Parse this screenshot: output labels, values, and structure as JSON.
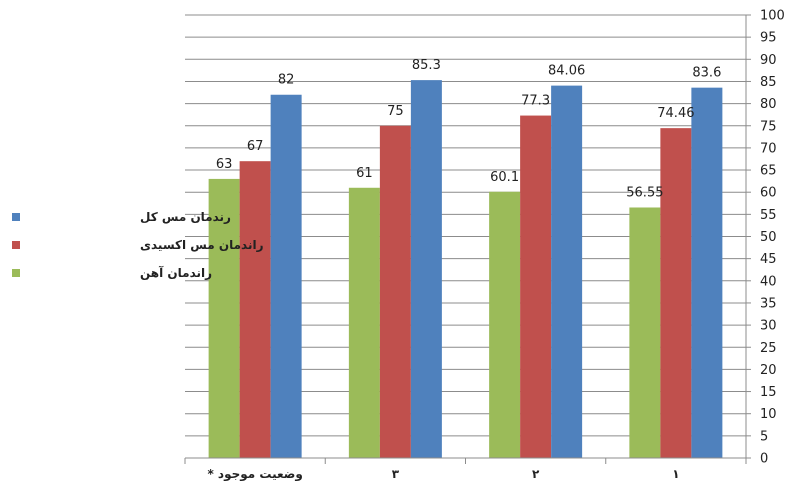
{
  "chart_data": {
    "type": "bar",
    "categories": [
      "وضعیت موجود *",
      "۳",
      "۲",
      "۱"
    ],
    "series": [
      {
        "name": "راندمان آهن",
        "color": "#9bbb59",
        "values": [
          63,
          61,
          60.1,
          56.55
        ],
        "labels": [
          "63",
          "61",
          "60.1",
          "56.55"
        ]
      },
      {
        "name": "راندمان مس اکسیدی",
        "color": "#c0504d",
        "values": [
          67,
          75,
          77.3,
          74.46
        ],
        "labels": [
          "67",
          "75",
          "77.3",
          "74.46"
        ]
      },
      {
        "name": "رندمان مس کل",
        "color": "#4f81bd",
        "values": [
          82,
          85.3,
          84.06,
          83.6
        ],
        "labels": [
          "82",
          "85.3",
          "84.06",
          "83.6"
        ]
      }
    ],
    "legend_order": [
      2,
      1,
      0
    ],
    "ylim": [
      0,
      100
    ],
    "ytick_step": 5,
    "grid": true,
    "y_axis_side": "right",
    "legend_position": "left"
  }
}
